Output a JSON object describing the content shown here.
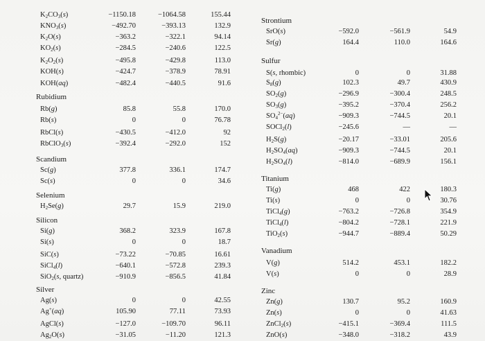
{
  "table": {
    "left": [
      {
        "kind": "row",
        "name_html": "K<sub>2</sub>CO<sub>3</sub>(<i>s</i>)",
        "h": "−1150.18",
        "g": "−1064.58",
        "s": "155.44"
      },
      {
        "kind": "row",
        "name_html": "KNO<sub>3</sub>(<i>s</i>)",
        "h": "−492.70",
        "g": "−393.13",
        "s": "132.9"
      },
      {
        "kind": "row",
        "name_html": "K<sub>2</sub>O(<i>s</i>)",
        "h": "−363.2",
        "g": "−322.1",
        "s": "94.14"
      },
      {
        "kind": "row",
        "name_html": "KO<sub>2</sub>(<i>s</i>)",
        "h": "−284.5",
        "g": "−240.6",
        "s": "122.5"
      },
      {
        "kind": "row",
        "name_html": "K<sub>2</sub>O<sub>2</sub>(<i>s</i>)",
        "h": "−495.8",
        "g": "−429.8",
        "s": "113.0"
      },
      {
        "kind": "row",
        "name_html": "KOH(<i>s</i>)",
        "h": "−424.7",
        "g": "−378.9",
        "s": "78.91"
      },
      {
        "kind": "row",
        "name_html": "KOH(<i>aq</i>)",
        "h": "−482.4",
        "g": "−440.5",
        "s": "91.6"
      },
      {
        "kind": "header",
        "label": "Rubidium"
      },
      {
        "kind": "row",
        "name_html": "Rb(<i>g</i>)",
        "h": "85.8",
        "g": "55.8",
        "s": "170.0"
      },
      {
        "kind": "row",
        "name_html": "Rb(<i>s</i>)",
        "h": "0",
        "g": "0",
        "s": "76.78"
      },
      {
        "kind": "row",
        "name_html": "RbCl(<i>s</i>)",
        "h": "−430.5",
        "g": "−412.0",
        "s": "92"
      },
      {
        "kind": "row",
        "name_html": "RbClO<sub>3</sub>(<i>s</i>)",
        "h": "−392.4",
        "g": "−292.0",
        "s": "152"
      },
      {
        "kind": "header",
        "label": "Scandium"
      },
      {
        "kind": "row",
        "name_html": "Sc(<i>g</i>)",
        "h": "377.8",
        "g": "336.1",
        "s": "174.7"
      },
      {
        "kind": "row",
        "name_html": "Sc(<i>s</i>)",
        "h": "0",
        "g": "0",
        "s": "34.6"
      },
      {
        "kind": "header",
        "label": "Selenium"
      },
      {
        "kind": "row",
        "name_html": "H<sub>2</sub>Se(<i>g</i>)",
        "h": "29.7",
        "g": "15.9",
        "s": "219.0"
      },
      {
        "kind": "header",
        "label": "Silicon"
      },
      {
        "kind": "row",
        "name_html": "Si(<i>g</i>)",
        "h": "368.2",
        "g": "323.9",
        "s": "167.8"
      },
      {
        "kind": "row",
        "name_html": "Si(<i>s</i>)",
        "h": "0",
        "g": "0",
        "s": "18.7"
      },
      {
        "kind": "row",
        "name_html": "SiC(<i>s</i>)",
        "h": "−73.22",
        "g": "−70.85",
        "s": "16.61"
      },
      {
        "kind": "row",
        "name_html": "SiCl<sub>4</sub>(<i>l</i>)",
        "h": "−640.1",
        "g": "−572.8",
        "s": "239.3"
      },
      {
        "kind": "row",
        "name_html": "SiO<sub>2</sub>(<i>s</i>, quartz)",
        "h": "−910.9",
        "g": "−856.5",
        "s": "41.84"
      },
      {
        "kind": "header",
        "label": "Silver"
      },
      {
        "kind": "row",
        "name_html": "Ag(<i>s</i>)",
        "h": "0",
        "g": "0",
        "s": "42.55"
      },
      {
        "kind": "row",
        "name_html": "Ag<sup>+</sup>(<i>aq</i>)",
        "h": "105.90",
        "g": "77.11",
        "s": "73.93"
      },
      {
        "kind": "row",
        "name_html": "AgCl(<i>s</i>)",
        "h": "−127.0",
        "g": "−109.70",
        "s": "96.11"
      },
      {
        "kind": "row",
        "name_html": "Ag<sub>2</sub>O(<i>s</i>)",
        "h": "−31.05",
        "g": "−11.20",
        "s": "121.3"
      }
    ],
    "right": [
      {
        "kind": "header",
        "label": "Strontium"
      },
      {
        "kind": "row",
        "name_html": "SrO(<i>s</i>)",
        "h": "−592.0",
        "g": "−561.9",
        "s": "54.9"
      },
      {
        "kind": "row",
        "name_html": "Sr(<i>g</i>)",
        "h": "164.4",
        "g": "110.0",
        "s": "164.6"
      },
      {
        "kind": "header",
        "label": "Sulfur"
      },
      {
        "kind": "row",
        "name_html": "S(<i>s</i>, rhombic)",
        "h": "0",
        "g": "0",
        "s": "31.88"
      },
      {
        "kind": "row",
        "name_html": "S<sub>8</sub>(<i>g</i>)",
        "h": "102.3",
        "g": "49.7",
        "s": "430.9"
      },
      {
        "kind": "row",
        "name_html": "SO<sub>2</sub>(<i>g</i>)",
        "h": "−296.9",
        "g": "−300.4",
        "s": "248.5"
      },
      {
        "kind": "row",
        "name_html": "SO<sub>3</sub>(<i>g</i>)",
        "h": "−395.2",
        "g": "−370.4",
        "s": "256.2"
      },
      {
        "kind": "row",
        "name_html": "SO<sub>4</sub><sup>2−</sup>(<i>aq</i>)",
        "h": "−909.3",
        "g": "−744.5",
        "s": "20.1"
      },
      {
        "kind": "row",
        "name_html": "SOCl<sub>2</sub>(<i>l</i>)",
        "h": "−245.6",
        "g": "—",
        "s": "—"
      },
      {
        "kind": "row",
        "name_html": "H<sub>2</sub>S(<i>g</i>)",
        "h": "−20.17",
        "g": "−33.01",
        "s": "205.6"
      },
      {
        "kind": "row",
        "name_html": "H<sub>2</sub>SO<sub>4</sub>(<i>aq</i>)",
        "h": "−909.3",
        "g": "−744.5",
        "s": "20.1"
      },
      {
        "kind": "row",
        "name_html": "H<sub>2</sub>SO<sub>4</sub>(<i>l</i>)",
        "h": "−814.0",
        "g": "−689.9",
        "s": "156.1"
      },
      {
        "kind": "header",
        "label": "Titanium"
      },
      {
        "kind": "row",
        "name_html": "Ti(<i>g</i>)",
        "h": "468",
        "g": "422",
        "s": "180.3"
      },
      {
        "kind": "row",
        "name_html": "Ti(<i>s</i>)",
        "h": "0",
        "g": "0",
        "s": "30.76"
      },
      {
        "kind": "row",
        "name_html": "TiCl<sub>4</sub>(<i>g</i>)",
        "h": "−763.2",
        "g": "−726.8",
        "s": "354.9"
      },
      {
        "kind": "row",
        "name_html": "TiCl<sub>4</sub>(<i>l</i>)",
        "h": "−804.2",
        "g": "−728.1",
        "s": "221.9"
      },
      {
        "kind": "row",
        "name_html": "TiO<sub>2</sub>(<i>s</i>)",
        "h": "−944.7",
        "g": "−889.4",
        "s": "50.29"
      },
      {
        "kind": "header",
        "label": "Vanadium"
      },
      {
        "kind": "row",
        "name_html": "V(<i>g</i>)",
        "h": "514.2",
        "g": "453.1",
        "s": "182.2"
      },
      {
        "kind": "row",
        "name_html": "V(<i>s</i>)",
        "h": "0",
        "g": "0",
        "s": "28.9"
      },
      {
        "kind": "header",
        "label": "Zinc"
      },
      {
        "kind": "row",
        "name_html": "Zn(<i>g</i>)",
        "h": "130.7",
        "g": "95.2",
        "s": "160.9"
      },
      {
        "kind": "row",
        "name_html": "Zn(<i>s</i>)",
        "h": "0",
        "g": "0",
        "s": "41.63"
      },
      {
        "kind": "row",
        "name_html": "ZnCl<sub>2</sub>(<i>s</i>)",
        "h": "−415.1",
        "g": "−369.4",
        "s": "111.5"
      },
      {
        "kind": "row",
        "name_html": "ZnO(<i>s</i>)",
        "h": "−348.0",
        "g": "−318.2",
        "s": "43.9"
      }
    ]
  },
  "cursor_icon": "mouse-pointer-icon"
}
